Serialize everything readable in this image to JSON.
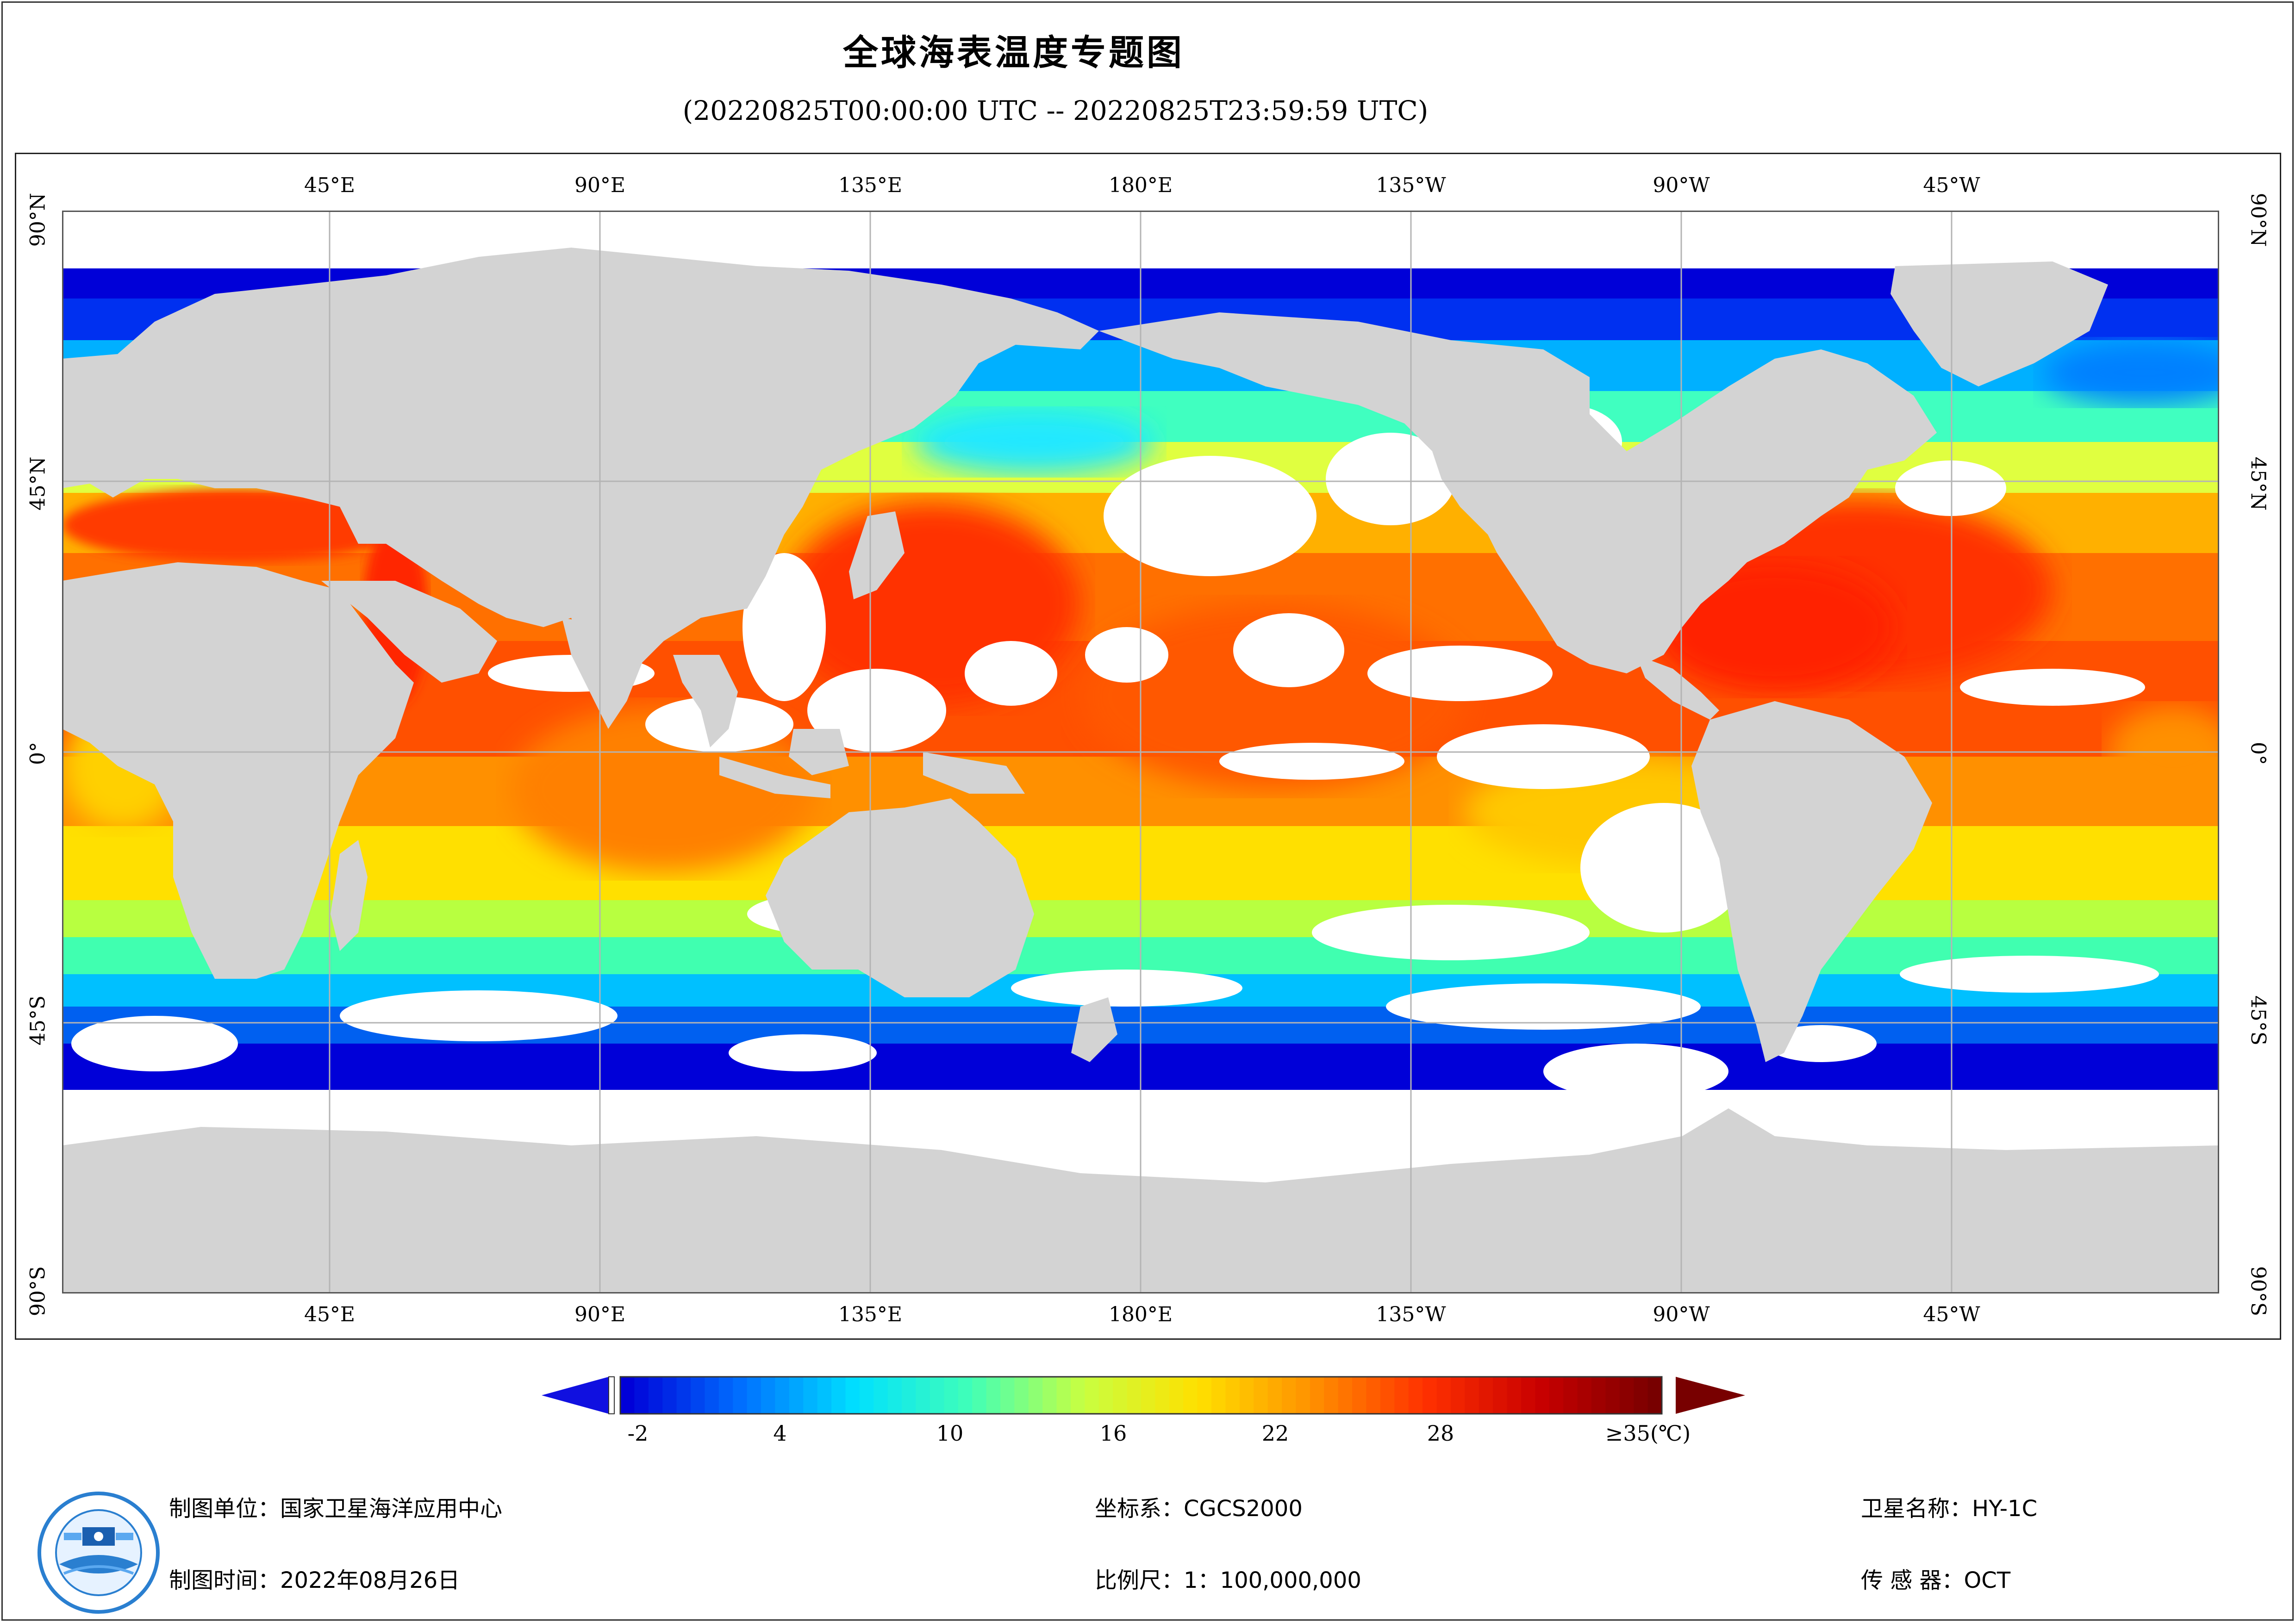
{
  "title": "全球海表温度专题图",
  "subtitle": "(20220825T00:00:00 UTC -- 20220825T23:59:59 UTC)",
  "map": {
    "lon_top": [
      "45°E",
      "90°E",
      "135°E",
      "180°E",
      "135°W",
      "90°W",
      "45°W"
    ],
    "lon_bottom": [
      "45°E",
      "90°E",
      "135°E",
      "180°E",
      "135°W",
      "90°W",
      "45°W"
    ],
    "lat_left": [
      "90°N",
      "45°N",
      "0°",
      "45°S",
      "90°S"
    ],
    "lat_right": [
      "90°N",
      "45°N",
      "0°",
      "45°S",
      "90°S"
    ],
    "colors": {
      "land": "#d3d3d3",
      "cloud_nodata": "#ffffff",
      "grid": "#b4b4b4"
    }
  },
  "legend": {
    "ticks": [
      "-2",
      "4",
      "10",
      "16",
      "22",
      "28",
      "≥35(℃)"
    ],
    "ramp": [
      "#0000d8",
      "#0070ff",
      "#00e0ff",
      "#40ffb8",
      "#c8ff40",
      "#ffe000",
      "#ff9000",
      "#ff3000",
      "#c80000",
      "#780000"
    ],
    "under_color": "#1010e0",
    "over_color": "#780000"
  },
  "footer": {
    "unit": "制图单位：国家卫星海洋应用中心",
    "time": "制图时间：2022年08月26日",
    "crs": "坐标系：CGCS2000",
    "scale": "比例尺：1：100,000,000",
    "satellite": "卫星名称：HY-1C",
    "sensor": "传  感  器：OCT"
  }
}
